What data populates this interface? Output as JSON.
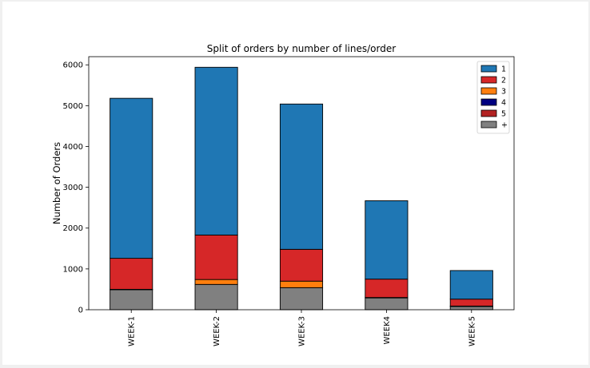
{
  "chart_data": {
    "type": "bar",
    "stacked": true,
    "title": "Split of orders by number of lines/order",
    "xlabel": "",
    "ylabel": "Number of Orders",
    "ylim": [
      0,
      6200
    ],
    "yticks": [
      0,
      1000,
      2000,
      3000,
      4000,
      5000,
      6000
    ],
    "grid": false,
    "legend_placement": "top-right",
    "categories": [
      "WEEK-1",
      "WEEK-2",
      "WEEK-3",
      "WEEK4",
      "WEEK-5"
    ],
    "series": [
      {
        "name": "+",
        "color": "#808080",
        "values": [
          490,
          620,
          540,
          290,
          80
        ]
      },
      {
        "name": "5",
        "color": "#b22222",
        "values": [
          0,
          0,
          0,
          0,
          0
        ]
      },
      {
        "name": "4",
        "color": "#000080",
        "values": [
          0,
          0,
          0,
          0,
          0
        ]
      },
      {
        "name": "3",
        "color": "#ff7f0e",
        "values": [
          10,
          120,
          160,
          10,
          10
        ]
      },
      {
        "name": "2",
        "color": "#d62728",
        "values": [
          760,
          1090,
          780,
          450,
          170
        ]
      },
      {
        "name": "1",
        "color": "#1f77b4",
        "values": [
          3920,
          4110,
          3560,
          1920,
          700
        ]
      }
    ],
    "legend_order": [
      "1",
      "2",
      "3",
      "4",
      "5",
      "+"
    ]
  }
}
